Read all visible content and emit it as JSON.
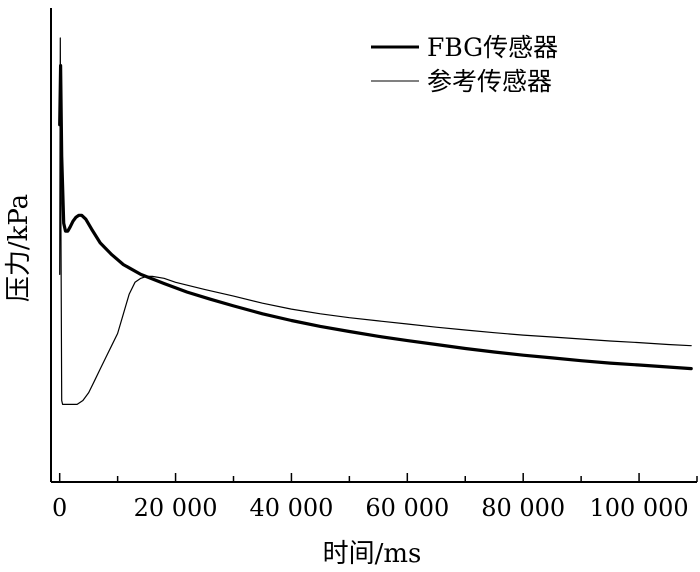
{
  "chart_data": {
    "type": "line",
    "title": "",
    "xlabel": "时间/ms",
    "ylabel": "压力/kPa",
    "xlim": [
      -1500,
      110000
    ],
    "ylim": [
      0,
      1
    ],
    "x_ticks": [
      0,
      20000,
      40000,
      60000,
      80000,
      100000
    ],
    "x_tick_labels": [
      "0",
      "20 000",
      "40 000",
      "60 000",
      "80 000",
      "100 000"
    ],
    "y_ticks_labeled": false,
    "grid": false,
    "legend_position": "top-right",
    "series": [
      {
        "name": "FBG传感器",
        "line_weight": "thick",
        "x": [
          0,
          150,
          350,
          700,
          1000,
          1400,
          1800,
          2300,
          2800,
          3300,
          3800,
          4500,
          5500,
          7000,
          9000,
          11000,
          14000,
          18000,
          22000,
          26000,
          30000,
          35000,
          40000,
          45000,
          50000,
          55000,
          60000,
          65000,
          70000,
          75000,
          80000,
          85000,
          90000,
          95000,
          100000,
          105000,
          109000
        ],
        "values": [
          0.78,
          0.93,
          0.7,
          0.53,
          0.51,
          0.51,
          0.52,
          0.535,
          0.545,
          0.55,
          0.55,
          0.54,
          0.515,
          0.48,
          0.45,
          0.425,
          0.4,
          0.377,
          0.355,
          0.337,
          0.32,
          0.3,
          0.283,
          0.268,
          0.255,
          0.243,
          0.232,
          0.222,
          0.212,
          0.203,
          0.195,
          0.188,
          0.181,
          0.175,
          0.17,
          0.165,
          0.161
        ]
      },
      {
        "name": "参考传感器",
        "line_weight": "thin",
        "x": [
          0,
          100,
          200,
          350,
          500,
          1000,
          2000,
          3000,
          4000,
          5000,
          6000,
          7000,
          8000,
          9000,
          10000,
          11000,
          12000,
          13000,
          14000,
          15000,
          16000,
          18000,
          20000,
          25000,
          30000,
          35000,
          40000,
          45000,
          50000,
          55000,
          60000,
          65000,
          70000,
          75000,
          80000,
          85000,
          90000,
          95000,
          100000,
          105000,
          109000
        ],
        "values": [
          0.4,
          1.0,
          0.6,
          0.08,
          0.07,
          0.07,
          0.07,
          0.07,
          0.08,
          0.1,
          0.13,
          0.16,
          0.19,
          0.22,
          0.25,
          0.3,
          0.35,
          0.38,
          0.39,
          0.395,
          0.395,
          0.39,
          0.38,
          0.362,
          0.345,
          0.327,
          0.312,
          0.3,
          0.29,
          0.282,
          0.274,
          0.266,
          0.259,
          0.252,
          0.246,
          0.241,
          0.236,
          0.231,
          0.227,
          0.222,
          0.219
        ]
      }
    ]
  }
}
